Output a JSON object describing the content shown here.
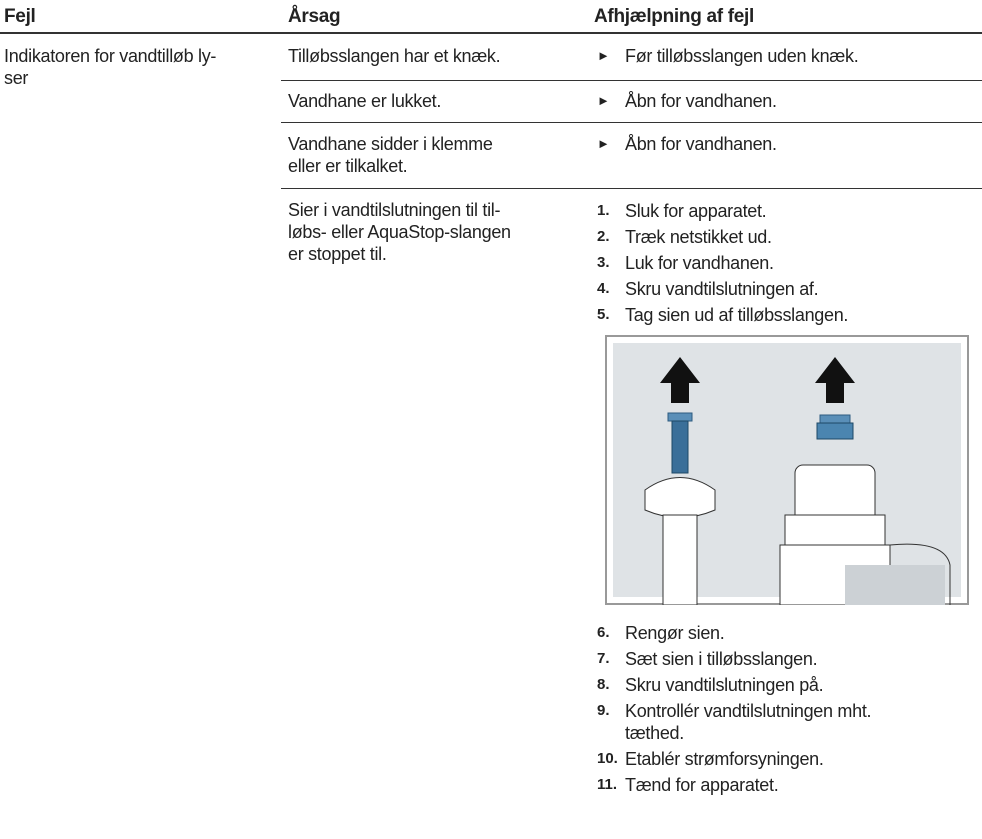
{
  "header": {
    "columns": [
      "Fejl",
      "Årsag",
      "Afhjælpning af fejl"
    ]
  },
  "table": {
    "fault": "Indikatoren for vandtilløb ly-\nser",
    "rows": [
      {
        "cause": "Tilløbsslangen har et knæk.",
        "remedy": "Før tilløbsslangen uden knæk."
      },
      {
        "cause": "Vandhane er lukket.",
        "remedy": "Åbn for vandhanen."
      },
      {
        "cause": "Vandhane sidder i klemme\neller er tilkalket.",
        "remedy": "Åbn for vandhanen."
      },
      {
        "cause": "Sier i vandtilslutningen til til-\nløbs- eller AquaStop-slangen\ner stoppet til.",
        "steps": [
          {
            "number": "1.",
            "text": "Sluk for apparatet."
          },
          {
            "number": "2.",
            "text": "Træk netstikket ud."
          },
          {
            "number": "3.",
            "text": "Luk for vandhanen."
          },
          {
            "number": "4.",
            "text": "Skru vandtilslutningen af."
          },
          {
            "number": "5.",
            "text": "Tag sien ud af tilløbsslangen."
          },
          {
            "number": "6.",
            "text": "Rengør sien."
          },
          {
            "number": "7.",
            "text": "Sæt sien i tilløbsslangen."
          },
          {
            "number": "8.",
            "text": "Skru vandtilslutningen på."
          },
          {
            "number": "9.",
            "text": "Kontrollér vandtilslutningen mht.\ntæthed."
          },
          {
            "number": "10.",
            "text": "Etablér strømforsyningen."
          },
          {
            "number": "11.",
            "text": "Tænd for apparatet."
          }
        ]
      }
    ]
  }
}
